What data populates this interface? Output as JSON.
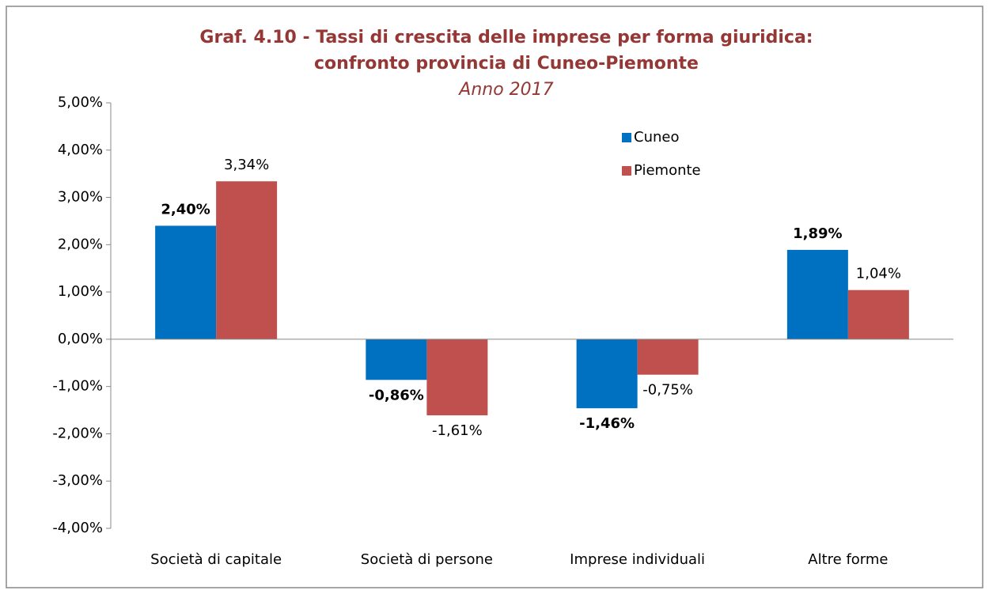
{
  "chart_data": {
    "type": "bar",
    "title": [
      "Graf. 4.10 - Tassi di crescita delle imprese per forma giuridica:",
      "confronto provincia di Cuneo-Piemonte"
    ],
    "subtitle": "Anno 2017",
    "categories": [
      "Società di capitale",
      "Società di persone",
      "Imprese individuali",
      "Altre forme"
    ],
    "series": [
      {
        "name": "Cuneo",
        "color": "#0070c0",
        "values": [
          2.4,
          -0.86,
          -1.46,
          1.89
        ],
        "value_labels": [
          "2,40%",
          "-0,86%",
          "-1,46%",
          "1,89%"
        ]
      },
      {
        "name": "Piemonte",
        "color": "#c0504d",
        "values": [
          3.34,
          -1.61,
          -0.75,
          1.04
        ],
        "value_labels": [
          "3,34%",
          "-1,61%",
          "-0,75%",
          "1,04%"
        ]
      }
    ],
    "ylim": [
      -4,
      5
    ],
    "yticks": [
      {
        "value": -4,
        "label": "-4,00%"
      },
      {
        "value": -3,
        "label": "-3,00%"
      },
      {
        "value": -2,
        "label": "-2,00%"
      },
      {
        "value": -1,
        "label": "-1,00%"
      },
      {
        "value": 0,
        "label": "0,00%"
      },
      {
        "value": 1,
        "label": "1,00%"
      },
      {
        "value": 2,
        "label": "2,00%"
      },
      {
        "value": 3,
        "label": "3,00%"
      },
      {
        "value": 4,
        "label": "4,00%"
      },
      {
        "value": 5,
        "label": "5,00%"
      }
    ],
    "grid": false,
    "legend": "top-right"
  }
}
